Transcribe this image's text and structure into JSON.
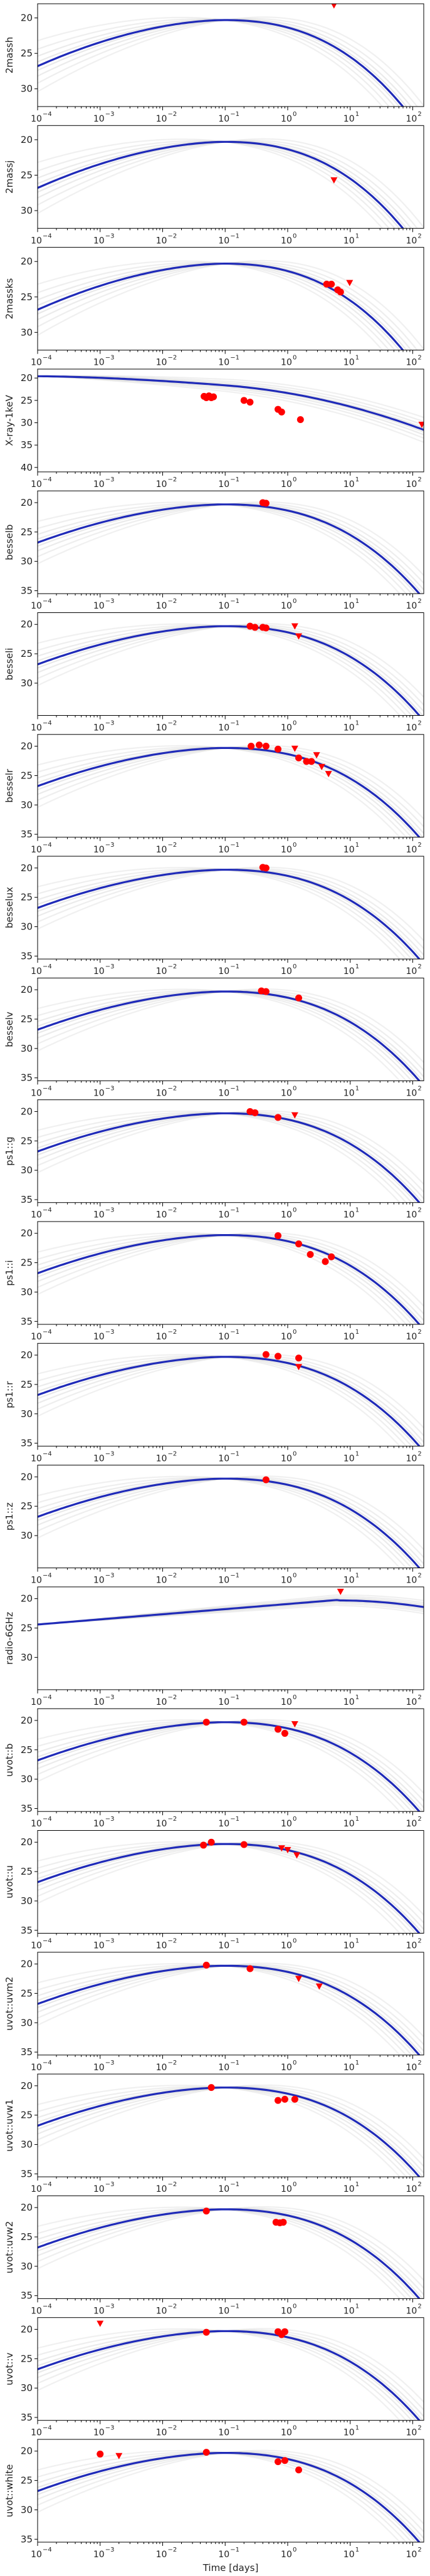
{
  "chart_data": {
    "type": "scatter",
    "xlabel": "Time [days]",
    "xscale": "log",
    "xlim": [
      0.0001,
      150
    ],
    "x_ticks": [
      0.0001,
      0.001,
      0.01,
      0.1,
      1,
      10,
      100
    ],
    "x_tick_labels": [
      "10",
      "10",
      "10",
      "10",
      "10",
      "10",
      "10"
    ],
    "x_tick_exponents": [
      "−4",
      "−3",
      "−2",
      "−1",
      "0",
      "1",
      "2"
    ],
    "y_inverted": true,
    "colors": {
      "model_main": "#1f2ab8",
      "model_samples": "#8a8a8a",
      "observed": "#ff0000",
      "upper_limit": "#ff0000"
    },
    "panels": [
      {
        "ylabel": "2massh",
        "ylim": [
          18,
          32.5
        ],
        "y_ticks": [
          20,
          25,
          30
        ],
        "y_tick_labels": [
          "20",
          "25",
          "30"
        ],
        "detections": [],
        "upper_limits": [
          [
            5.5,
            18.2
          ]
        ]
      },
      {
        "ylabel": "2massj",
        "ylim": [
          18,
          32.5
        ],
        "y_ticks": [
          20,
          25,
          30
        ],
        "y_tick_labels": [
          "20",
          "25",
          "30"
        ],
        "detections": [],
        "upper_limits": [
          [
            5.5,
            25.7
          ]
        ]
      },
      {
        "ylabel": "2massks",
        "ylim": [
          18,
          32.5
        ],
        "y_ticks": [
          20,
          25,
          30
        ],
        "y_tick_labels": [
          "20",
          "25",
          "30"
        ],
        "detections": [
          [
            4.2,
            23.2
          ],
          [
            5.0,
            23.2
          ],
          [
            6.3,
            24.0
          ],
          [
            7.0,
            24.3
          ]
        ],
        "upper_limits": [
          [
            9.8,
            23.0
          ]
        ]
      },
      {
        "ylabel": "X-ray-1keV",
        "ylim": [
          18,
          41
        ],
        "y_ticks": [
          20,
          25,
          30,
          35,
          40
        ],
        "y_tick_labels": [
          "20",
          "25",
          "30",
          "35",
          "40"
        ],
        "detections": [
          [
            0.046,
            24.1
          ],
          [
            0.05,
            24.4
          ],
          [
            0.055,
            24.0
          ],
          [
            0.06,
            24.4
          ],
          [
            0.065,
            24.2
          ],
          [
            0.2,
            25.0
          ],
          [
            0.25,
            25.4
          ],
          [
            0.7,
            27.0
          ],
          [
            0.8,
            27.6
          ],
          [
            1.6,
            29.3
          ]
        ],
        "upper_limits": [
          [
            140,
            30.4
          ]
        ]
      },
      {
        "ylabel": "besselb",
        "ylim": [
          18,
          35.5
        ],
        "y_ticks": [
          20,
          25,
          30,
          35
        ],
        "y_tick_labels": [
          "20",
          "25",
          "30",
          "35"
        ],
        "detections": [
          [
            0.4,
            20.0
          ],
          [
            0.45,
            20.1
          ]
        ],
        "upper_limits": []
      },
      {
        "ylabel": "besseli",
        "ylim": [
          18,
          35.5
        ],
        "y_ticks": [
          20,
          25,
          30
        ],
        "y_tick_labels": [
          "20",
          "25",
          "30"
        ],
        "detections": [
          [
            0.25,
            20.3
          ],
          [
            0.3,
            20.5
          ],
          [
            0.4,
            20.5
          ],
          [
            0.45,
            20.6
          ]
        ],
        "upper_limits": [
          [
            1.3,
            20.3
          ],
          [
            1.5,
            22.0
          ]
        ]
      },
      {
        "ylabel": "besselr",
        "ylim": [
          18,
          35.5
        ],
        "y_ticks": [
          20,
          25,
          30,
          35
        ],
        "y_tick_labels": [
          "20",
          "25",
          "30",
          "35"
        ],
        "detections": [
          [
            0.26,
            20.0
          ],
          [
            0.35,
            19.8
          ],
          [
            0.45,
            20.0
          ],
          [
            0.7,
            20.5
          ],
          [
            1.5,
            22.0
          ],
          [
            2.0,
            22.6
          ],
          [
            2.4,
            22.6
          ]
        ],
        "upper_limits": [
          [
            1.3,
            20.4
          ],
          [
            2.9,
            21.5
          ],
          [
            3.5,
            23.5
          ],
          [
            4.5,
            24.7
          ]
        ]
      },
      {
        "ylabel": "besselux",
        "ylim": [
          18,
          35.5
        ],
        "y_ticks": [
          20,
          25,
          30,
          35
        ],
        "y_tick_labels": [
          "20",
          "25",
          "30",
          "35"
        ],
        "detections": [
          [
            0.4,
            19.9
          ],
          [
            0.45,
            20.0
          ]
        ],
        "upper_limits": []
      },
      {
        "ylabel": "besselv",
        "ylim": [
          18,
          35.5
        ],
        "y_ticks": [
          20,
          25,
          30,
          35
        ],
        "y_tick_labels": [
          "20",
          "25",
          "30",
          "35"
        ],
        "detections": [
          [
            0.38,
            20.2
          ],
          [
            0.45,
            20.3
          ],
          [
            1.5,
            21.4
          ]
        ],
        "upper_limits": []
      },
      {
        "ylabel": "ps1::g",
        "ylim": [
          18,
          35.5
        ],
        "y_ticks": [
          20,
          25,
          30,
          35
        ],
        "y_tick_labels": [
          "20",
          "25",
          "30",
          "35"
        ],
        "detections": [
          [
            0.25,
            20.0
          ],
          [
            0.3,
            20.2
          ],
          [
            0.7,
            21.0
          ]
        ],
        "upper_limits": [
          [
            1.3,
            20.6
          ]
        ]
      },
      {
        "ylabel": "ps1::i",
        "ylim": [
          18,
          35.5
        ],
        "y_ticks": [
          20,
          25,
          30,
          35
        ],
        "y_tick_labels": [
          "20",
          "25",
          "30",
          "35"
        ],
        "detections": [
          [
            0.7,
            20.4
          ],
          [
            1.5,
            21.8
          ],
          [
            2.3,
            23.6
          ],
          [
            4.0,
            24.8
          ],
          [
            5.0,
            24.0
          ]
        ],
        "upper_limits": []
      },
      {
        "ylabel": "ps1::r",
        "ylim": [
          18,
          35.5
        ],
        "y_ticks": [
          20,
          25,
          30,
          35
        ],
        "y_tick_labels": [
          "20",
          "25",
          "30",
          "35"
        ],
        "detections": [
          [
            0.45,
            19.9
          ],
          [
            0.7,
            20.2
          ],
          [
            1.5,
            20.5
          ]
        ],
        "upper_limits": [
          [
            1.5,
            22.0
          ]
        ]
      },
      {
        "ylabel": "ps1::z",
        "ylim": [
          18,
          35.5
        ],
        "y_ticks": [
          20,
          25,
          30
        ],
        "y_tick_labels": [
          "20",
          "25",
          "30"
        ],
        "detections": [
          [
            0.45,
            20.5
          ]
        ],
        "upper_limits": []
      },
      {
        "ylabel": "radio-6GHz",
        "ylim": [
          18,
          35.5
        ],
        "y_ticks": [
          20,
          25,
          30
        ],
        "y_tick_labels": [
          "20",
          "25",
          "30"
        ],
        "detections": [],
        "upper_limits": [
          [
            7.0,
            18.8
          ]
        ]
      },
      {
        "ylabel": "uvot::b",
        "ylim": [
          18,
          35.5
        ],
        "y_ticks": [
          20,
          25,
          30,
          35
        ],
        "y_tick_labels": [
          "20",
          "25",
          "30",
          "35"
        ],
        "detections": [
          [
            0.05,
            20.3
          ],
          [
            0.2,
            20.3
          ],
          [
            0.7,
            21.5
          ],
          [
            0.9,
            22.2
          ]
        ],
        "upper_limits": [
          [
            1.3,
            20.6
          ]
        ]
      },
      {
        "ylabel": "uvot::u",
        "ylim": [
          18,
          35.5
        ],
        "y_ticks": [
          20,
          25,
          30,
          35
        ],
        "y_tick_labels": [
          "20",
          "25",
          "30",
          "35"
        ],
        "detections": [
          [
            0.045,
            20.5
          ],
          [
            0.06,
            20.0
          ],
          [
            0.2,
            20.4
          ]
        ],
        "upper_limits": [
          [
            0.8,
            21.0
          ],
          [
            1.0,
            21.3
          ],
          [
            1.4,
            22.2
          ]
        ]
      },
      {
        "ylabel": "uvot::uvm2",
        "ylim": [
          18,
          35.5
        ],
        "y_ticks": [
          20,
          25,
          30,
          35
        ],
        "y_tick_labels": [
          "20",
          "25",
          "30",
          "35"
        ],
        "detections": [
          [
            0.05,
            20.2
          ],
          [
            0.25,
            20.8
          ]
        ],
        "upper_limits": [
          [
            1.5,
            22.5
          ],
          [
            3.2,
            23.8
          ]
        ]
      },
      {
        "ylabel": "uvot::uvw1",
        "ylim": [
          18,
          35.5
        ],
        "y_ticks": [
          20,
          25,
          30,
          35
        ],
        "y_tick_labels": [
          "20",
          "25",
          "30",
          "35"
        ],
        "detections": [
          [
            0.06,
            20.3
          ],
          [
            0.7,
            22.5
          ],
          [
            0.9,
            22.3
          ],
          [
            1.3,
            22.3
          ]
        ],
        "upper_limits": []
      },
      {
        "ylabel": "uvot::uvw2",
        "ylim": [
          18,
          35.5
        ],
        "y_ticks": [
          20,
          25,
          30,
          35
        ],
        "y_tick_labels": [
          "20",
          "25",
          "30",
          "35"
        ],
        "detections": [
          [
            0.05,
            20.6
          ],
          [
            0.65,
            22.5
          ],
          [
            0.75,
            22.6
          ],
          [
            0.85,
            22.5
          ]
        ],
        "upper_limits": []
      },
      {
        "ylabel": "uvot::v",
        "ylim": [
          18,
          35.5
        ],
        "y_ticks": [
          20,
          25,
          30,
          35
        ],
        "y_tick_labels": [
          "20",
          "25",
          "30",
          "35"
        ],
        "detections": [
          [
            0.05,
            20.5
          ],
          [
            0.7,
            20.4
          ],
          [
            0.8,
            20.9
          ],
          [
            0.9,
            20.4
          ]
        ],
        "upper_limits": [
          [
            0.001,
            19.0
          ]
        ]
      },
      {
        "ylabel": "uvot::white",
        "ylim": [
          18,
          35.5
        ],
        "y_ticks": [
          20,
          25,
          30,
          35
        ],
        "y_tick_labels": [
          "20",
          "25",
          "30",
          "35"
        ],
        "detections": [
          [
            0.001,
            20.5
          ],
          [
            0.05,
            20.2
          ],
          [
            0.7,
            21.8
          ],
          [
            0.9,
            21.6
          ],
          [
            1.5,
            23.2
          ]
        ],
        "upper_limits": [
          [
            0.002,
            20.8
          ]
        ]
      }
    ]
  }
}
